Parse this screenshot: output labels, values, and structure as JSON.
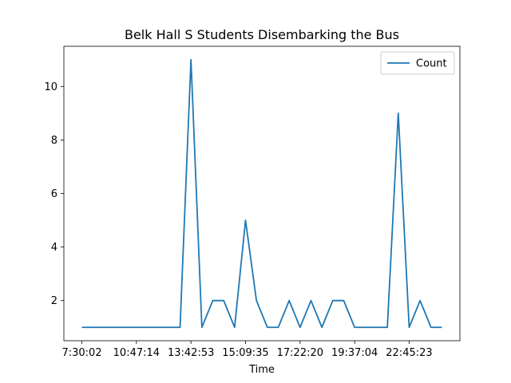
{
  "chart_data": {
    "type": "line",
    "title": "Belk Hall S Students Disembarking the Bus",
    "xlabel": "Time",
    "ylabel": "",
    "x_tick_labels": [
      {
        "index": 0,
        "label": "7:30:02"
      },
      {
        "index": 5,
        "label": "10:47:14"
      },
      {
        "index": 10,
        "label": "13:42:53"
      },
      {
        "index": 15,
        "label": "15:09:35"
      },
      {
        "index": 20,
        "label": "17:22:20"
      },
      {
        "index": 25,
        "label": "19:37:04"
      },
      {
        "index": 30,
        "label": "22:45:23"
      }
    ],
    "yticks": [
      2,
      4,
      6,
      8,
      10
    ],
    "ylim": [
      0.5,
      11.5
    ],
    "xlim": [
      -1.65,
      34.65
    ],
    "grid": false,
    "legend_position": "upper right",
    "series": [
      {
        "name": "Count",
        "color": "#1f77b4",
        "values": [
          1,
          1,
          1,
          1,
          1,
          1,
          1,
          1,
          1,
          1,
          11,
          1,
          2,
          2,
          1,
          5,
          2,
          1,
          1,
          2,
          1,
          2,
          1,
          2,
          2,
          1,
          1,
          1,
          1,
          9,
          1,
          2,
          1,
          1
        ]
      }
    ]
  }
}
